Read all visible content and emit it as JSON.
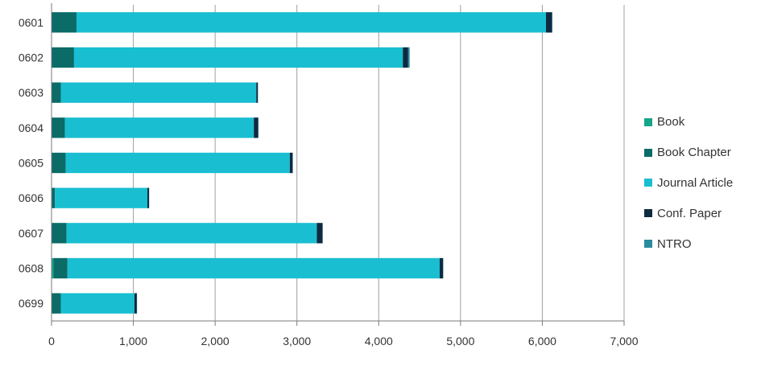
{
  "chart_data": {
    "type": "bar",
    "orientation": "horizontal",
    "stacked": true,
    "title": "",
    "xlabel": "",
    "ylabel": "",
    "xlim": [
      0,
      7000
    ],
    "x_ticks": [
      0,
      1000,
      2000,
      3000,
      4000,
      5000,
      6000,
      7000
    ],
    "x_tick_labels": [
      "0",
      "1,000",
      "2,000",
      "3,000",
      "4,000",
      "5,000",
      "6,000",
      "7,000"
    ],
    "grid": "vertical",
    "legend_position": "right",
    "categories": [
      "0601",
      "0602",
      "0603",
      "0604",
      "0605",
      "0606",
      "0607",
      "0608",
      "0699"
    ],
    "series": [
      {
        "name": "Book",
        "color": "#17a589",
        "values": [
          5,
          5,
          3,
          3,
          3,
          2,
          3,
          25,
          3
        ]
      },
      {
        "name": "Book Chapter",
        "color": "#0b6b66",
        "values": [
          300,
          270,
          110,
          160,
          170,
          40,
          180,
          170,
          110
        ]
      },
      {
        "name": "Journal Article",
        "color": "#19bed1",
        "values": [
          5740,
          4020,
          2390,
          2310,
          2740,
          1130,
          3060,
          4550,
          900
        ]
      },
      {
        "name": "Conf. Paper",
        "color": "#0d2b40",
        "values": [
          75,
          65,
          20,
          55,
          35,
          20,
          70,
          40,
          30
        ]
      },
      {
        "name": "NTRO",
        "color": "#2a8a9e",
        "values": [
          2,
          18,
          2,
          2,
          2,
          2,
          2,
          5,
          2
        ]
      }
    ]
  }
}
